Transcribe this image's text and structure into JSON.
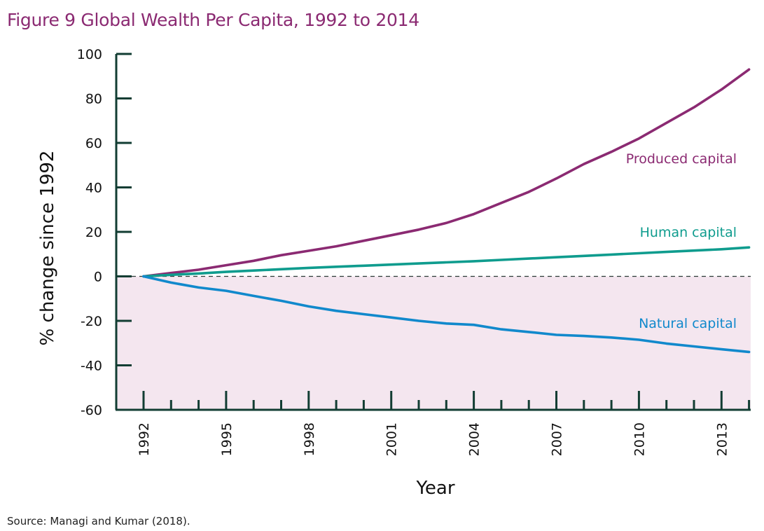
{
  "title": "Figure 9 Global Wealth Per Capita, 1992 to 2014",
  "source": "Source: Managi and Kumar (2018).",
  "chart_data": {
    "type": "line",
    "xlabel": "Year",
    "ylabel": "% change since 1992",
    "xlim": [
      1991,
      2014
    ],
    "ylim": [
      -60,
      100
    ],
    "y_ticks": [
      100,
      80,
      60,
      40,
      20,
      0,
      -20,
      -40,
      -60
    ],
    "x_tick_labels": [
      "1992",
      "1995",
      "1998",
      "2001",
      "2004",
      "2007",
      "2010",
      "2013"
    ],
    "x_tick_values": [
      1992,
      1995,
      1998,
      2001,
      2004,
      2007,
      2010,
      2013
    ],
    "negative_region_shading": "#f4e6ef",
    "zero_line": "dashed",
    "series": [
      {
        "name": "Produced capital",
        "color": "#8b2a72",
        "x": [
          1992,
          1993,
          1994,
          1995,
          1996,
          1997,
          1998,
          1999,
          2000,
          2001,
          2002,
          2003,
          2004,
          2005,
          2006,
          2007,
          2008,
          2009,
          2010,
          2011,
          2012,
          2013,
          2014
        ],
        "values": [
          0,
          1.5,
          3,
          5,
          7,
          9.5,
          11.5,
          13.5,
          16,
          18.5,
          21,
          24,
          28,
          33,
          38,
          44,
          50.5,
          56,
          62,
          69,
          76,
          84,
          93
        ]
      },
      {
        "name": "Human capital",
        "color": "#0f9c8e",
        "x": [
          1992,
          1993,
          1994,
          1995,
          1996,
          1997,
          1998,
          1999,
          2000,
          2001,
          2002,
          2003,
          2004,
          2005,
          2006,
          2007,
          2008,
          2009,
          2010,
          2011,
          2012,
          2013,
          2014
        ],
        "values": [
          0,
          0.7,
          1.3,
          2,
          2.6,
          3.2,
          3.8,
          4.3,
          4.8,
          5.3,
          5.8,
          6.3,
          6.8,
          7.4,
          8,
          8.6,
          9.2,
          9.8,
          10.4,
          11,
          11.6,
          12.2,
          13
        ]
      },
      {
        "name": "Natural capital",
        "color": "#1189cc",
        "x": [
          1992,
          1993,
          1994,
          1995,
          1996,
          1997,
          1998,
          1999,
          2000,
          2001,
          2002,
          2003,
          2004,
          2005,
          2006,
          2007,
          2008,
          2009,
          2010,
          2011,
          2012,
          2013,
          2014
        ],
        "values": [
          0,
          -2.8,
          -5,
          -6.5,
          -8.8,
          -11,
          -13.5,
          -15.5,
          -17,
          -18.5,
          -20,
          -21.2,
          -21.8,
          -23.8,
          -25,
          -26.3,
          -26.8,
          -27.5,
          -28.5,
          -30.2,
          -31.5,
          -32.8,
          -34
        ]
      }
    ]
  }
}
